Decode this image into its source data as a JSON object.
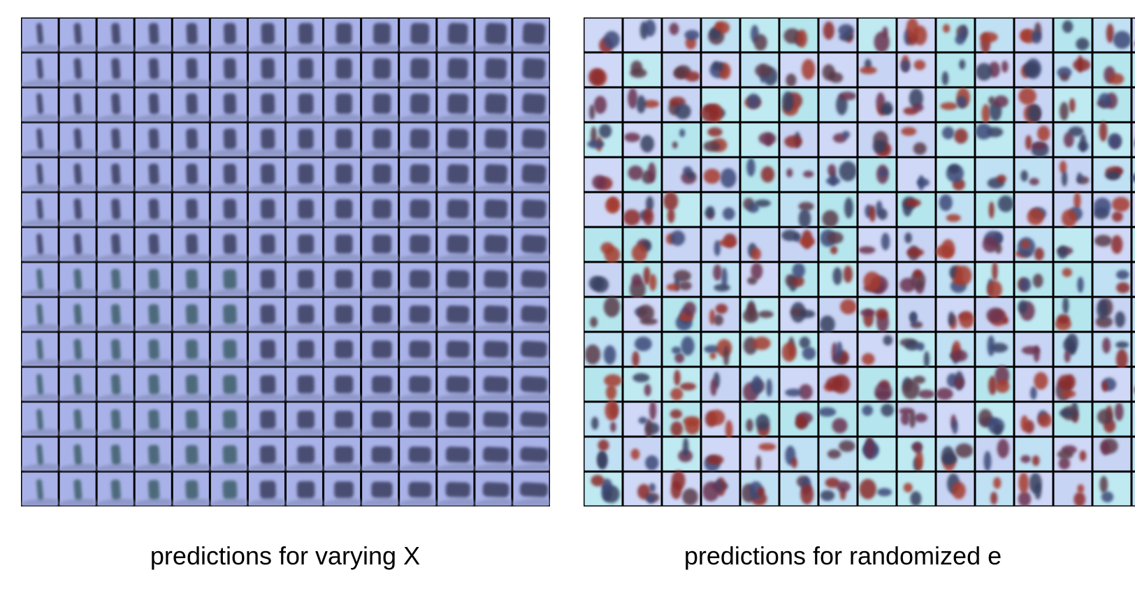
{
  "panels": [
    {
      "caption": "predictions for varying X"
    },
    {
      "caption": "predictions for randomized e"
    }
  ]
}
